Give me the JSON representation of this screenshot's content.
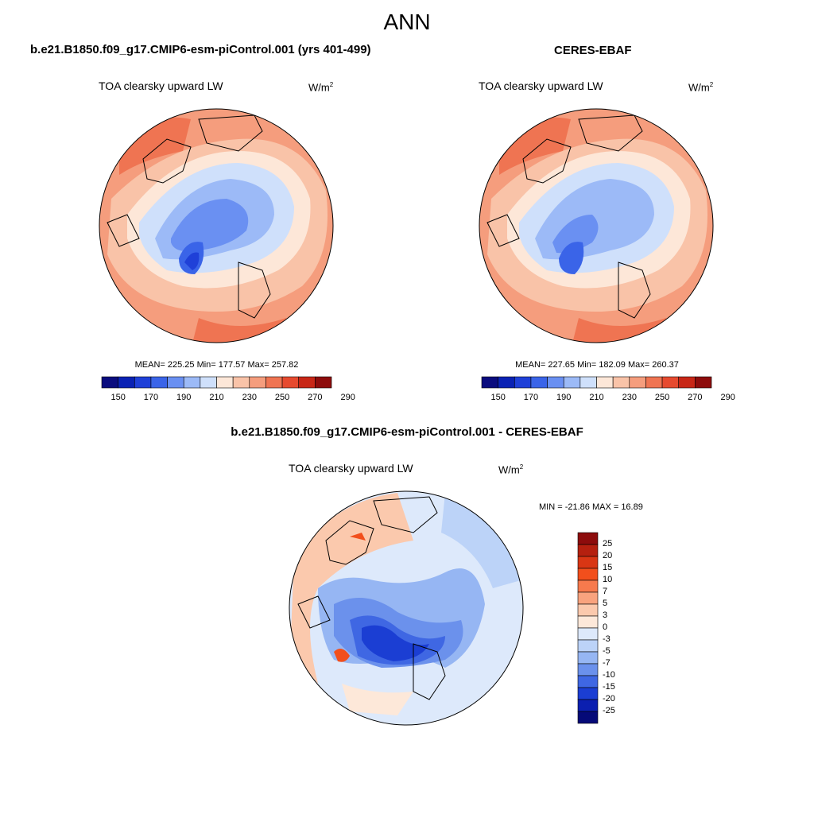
{
  "figure": {
    "title": "ANN"
  },
  "panels": {
    "model": {
      "title": "b.e21.B1850.f09_g17.CMIP6-esm-piControl.001 (yrs 401-499)",
      "variable": "TOA clearsky upward LW",
      "units_base": "W/m",
      "units_exp": "2",
      "stats": "MEAN= 225.25  Min= 177.57  Max= 257.82"
    },
    "obs": {
      "title": "CERES-EBAF",
      "variable": "TOA clearsky upward LW",
      "units_base": "W/m",
      "units_exp": "2",
      "stats": "MEAN= 227.65  Min= 182.09  Max= 260.37"
    },
    "diff": {
      "title": "b.e21.B1850.f09_g17.CMIP6-esm-piControl.001 - CERES-EBAF",
      "variable": "TOA clearsky upward LW",
      "units_base": "W/m",
      "units_exp": "2",
      "stats": "MIN = -21.86 MAX =  16.89"
    }
  },
  "chart_data": [
    {
      "type": "heatmap",
      "projection": "north-polar-stereographic",
      "title": "b.e21.B1850.f09_g17.CMIP6-esm-piControl.001 (yrs 401-499)",
      "variable": "TOA clearsky upward LW",
      "units": "W/m2",
      "mean": 225.25,
      "min": 177.57,
      "max": 257.82,
      "colorbar_ticks": [
        150,
        170,
        190,
        210,
        230,
        250,
        270,
        290
      ],
      "colorbar_colors": [
        "#0a0c7e",
        "#0a22b4",
        "#1f40d8",
        "#3a64e8",
        "#6a90f2",
        "#9cbaf7",
        "#cfe0fb",
        "#fde7d8",
        "#f9c3a8",
        "#f59d7d",
        "#ef7452",
        "#e64a2f",
        "#c82717",
        "#8d0c0c"
      ]
    },
    {
      "type": "heatmap",
      "projection": "north-polar-stereographic",
      "title": "CERES-EBAF",
      "variable": "TOA clearsky upward LW",
      "units": "W/m2",
      "mean": 227.65,
      "min": 182.09,
      "max": 260.37,
      "colorbar_ticks": [
        150,
        170,
        190,
        210,
        230,
        250,
        270,
        290
      ],
      "colorbar_colors": [
        "#0a0c7e",
        "#0a22b4",
        "#1f40d8",
        "#3a64e8",
        "#6a90f2",
        "#9cbaf7",
        "#cfe0fb",
        "#fde7d8",
        "#f9c3a8",
        "#f59d7d",
        "#ef7452",
        "#e64a2f",
        "#c82717",
        "#8d0c0c"
      ]
    },
    {
      "type": "heatmap",
      "projection": "north-polar-stereographic",
      "title": "b.e21.B1850.f09_g17.CMIP6-esm-piControl.001 - CERES-EBAF",
      "variable": "TOA clearsky upward LW",
      "units": "W/m2",
      "min": -21.86,
      "max": 16.89,
      "colorbar_ticks": [
        25,
        20,
        15,
        10,
        7,
        5,
        3,
        0,
        -3,
        -5,
        -7,
        -10,
        -15,
        -20,
        -25
      ],
      "colorbar_colors": [
        "#8d0c0c",
        "#b5200f",
        "#d93614",
        "#f24f1c",
        "#f77a4d",
        "#f9a37e",
        "#fbc9ad",
        "#fde8d9",
        "#dde9fb",
        "#bcd3f8",
        "#96b6f3",
        "#6b91ec",
        "#3f67e3",
        "#1b3ed3",
        "#0b1fb0",
        "#050a78"
      ]
    }
  ]
}
